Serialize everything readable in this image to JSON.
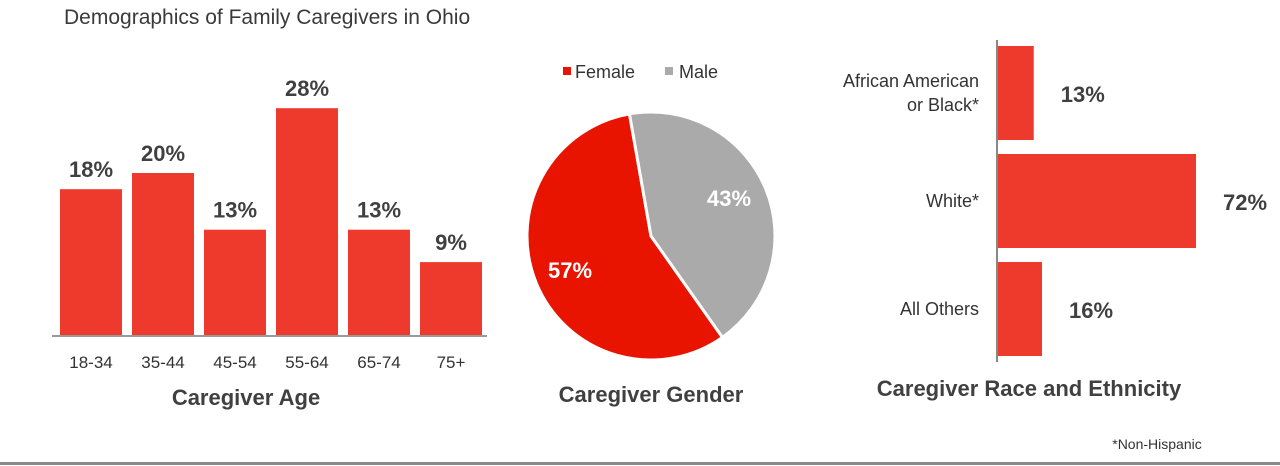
{
  "title": "Demographics of Family Caregivers in Ohio",
  "colors": {
    "bar": "#ee3a2c",
    "female": "#e81400",
    "male": "#aaaaaa",
    "text": "#404040"
  },
  "chart_data": [
    {
      "type": "bar",
      "title": "Caregiver Age",
      "categories": [
        "18-34",
        "35-44",
        "45-54",
        "55-64",
        "65-74",
        "75+"
      ],
      "values": [
        18,
        20,
        13,
        28,
        13,
        9
      ],
      "labels": [
        "18%",
        "20%",
        "13%",
        "28%",
        "13%",
        "9%"
      ],
      "unit": "%"
    },
    {
      "type": "pie",
      "title": "Caregiver Gender",
      "legend": "top",
      "categories": [
        "Female",
        "Male"
      ],
      "values": [
        57,
        43
      ],
      "labels": [
        "57%",
        "43%"
      ]
    },
    {
      "type": "bar",
      "orientation": "horizontal",
      "title": "Caregiver Race and Ethnicity",
      "categories": [
        [
          "African American",
          "or Black*"
        ],
        [
          "White*"
        ],
        [
          "All Others"
        ]
      ],
      "values": [
        13,
        72,
        16
      ],
      "labels": [
        "13%",
        "72%",
        "16%"
      ],
      "footnote": "*Non-Hispanic"
    }
  ]
}
